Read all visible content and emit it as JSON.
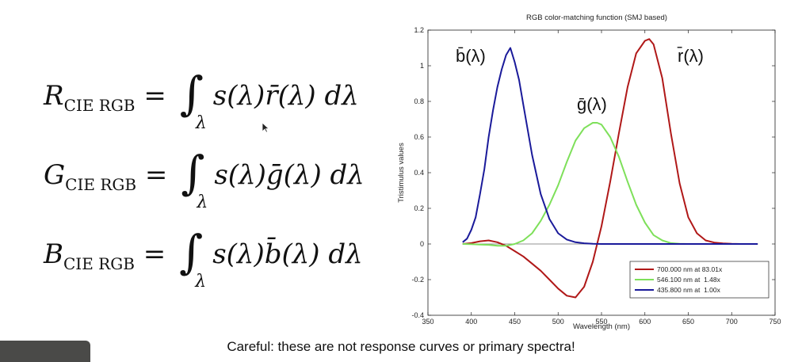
{
  "equations": [
    {
      "symbol": "R",
      "subscript": "CIE RGB",
      "body": "s(λ)r̄(λ) dλ",
      "limit": "λ"
    },
    {
      "symbol": "G",
      "subscript": "CIE RGB",
      "body": "s(λ)ḡ(λ) dλ",
      "limit": "λ"
    },
    {
      "symbol": "B",
      "subscript": "CIE RGB",
      "body": "s(λ)b̄(λ) dλ",
      "limit": "λ"
    }
  ],
  "caption": "Careful: these are not response curves or primary spectra!",
  "chart_data": {
    "type": "line",
    "title": "RGB color-matching function (SMJ based)",
    "xlabel": "Wavelength (nm)",
    "ylabel": "Tristimulus values",
    "xlim": [
      350,
      750
    ],
    "ylim": [
      -0.4,
      1.2
    ],
    "xticks": [
      350,
      400,
      450,
      500,
      550,
      600,
      650,
      700,
      750
    ],
    "yticks": [
      -0.4,
      -0.2,
      0,
      0.2,
      0.4,
      0.6,
      0.8,
      1,
      1.2
    ],
    "legend_position": "bottom-right",
    "series": [
      {
        "name": "700.000 nm at 83.01x",
        "label": "r̄(λ)",
        "color": "#b01818",
        "x": [
          390,
          400,
          410,
          420,
          430,
          440,
          450,
          460,
          470,
          480,
          490,
          500,
          510,
          520,
          530,
          540,
          550,
          560,
          570,
          580,
          590,
          600,
          605,
          610,
          620,
          630,
          640,
          650,
          660,
          670,
          680,
          690,
          700,
          710,
          720,
          730
        ],
        "y": [
          0,
          0.005,
          0.015,
          0.02,
          0.01,
          -0.01,
          -0.04,
          -0.07,
          -0.11,
          -0.15,
          -0.2,
          -0.25,
          -0.29,
          -0.3,
          -0.24,
          -0.1,
          0.1,
          0.35,
          0.62,
          0.88,
          1.07,
          1.14,
          1.15,
          1.12,
          0.93,
          0.62,
          0.34,
          0.15,
          0.06,
          0.02,
          0.008,
          0.003,
          0.001,
          0,
          0,
          0
        ]
      },
      {
        "name": "546.100 nm at  1.48x",
        "label": "ḡ(λ)",
        "color": "#7ee05a",
        "x": [
          390,
          400,
          410,
          420,
          430,
          440,
          450,
          460,
          470,
          480,
          490,
          500,
          510,
          520,
          530,
          540,
          545,
          550,
          560,
          570,
          580,
          590,
          600,
          610,
          620,
          630,
          640,
          650,
          660,
          670,
          680,
          690,
          700,
          710,
          720,
          730
        ],
        "y": [
          0,
          -0.001,
          -0.003,
          -0.005,
          -0.01,
          -0.01,
          0,
          0.02,
          0.06,
          0.13,
          0.22,
          0.33,
          0.46,
          0.58,
          0.65,
          0.68,
          0.68,
          0.67,
          0.6,
          0.49,
          0.35,
          0.22,
          0.12,
          0.05,
          0.02,
          0.005,
          0.001,
          0,
          0,
          0,
          0,
          0,
          0,
          0,
          0,
          0
        ]
      },
      {
        "name": "435.800 nm at  1.00x",
        "label": "b̄(λ)",
        "color": "#1a1a9a",
        "x": [
          390,
          395,
          400,
          405,
          410,
          415,
          420,
          425,
          430,
          435,
          440,
          445,
          450,
          455,
          460,
          470,
          480,
          490,
          500,
          510,
          520,
          530,
          540,
          550,
          560,
          580,
          600,
          650,
          700,
          730
        ],
        "y": [
          0.01,
          0.03,
          0.08,
          0.15,
          0.28,
          0.42,
          0.6,
          0.75,
          0.88,
          0.98,
          1.06,
          1.1,
          1.02,
          0.92,
          0.78,
          0.5,
          0.28,
          0.14,
          0.06,
          0.025,
          0.01,
          0.004,
          0.001,
          0,
          0,
          0,
          0,
          0,
          0,
          0
        ]
      }
    ]
  }
}
